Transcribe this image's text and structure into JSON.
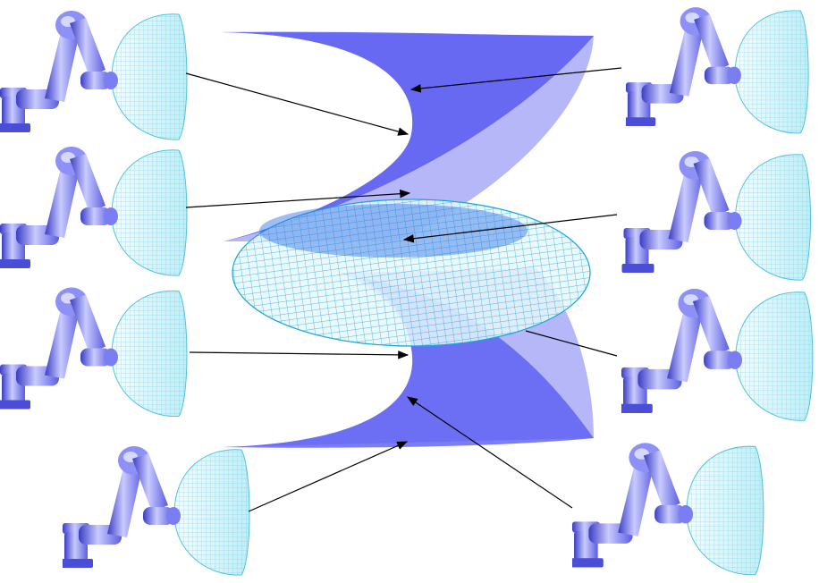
{
  "figure": {
    "background": "#ffffff",
    "colors": {
      "robot_body": "#6f72f0",
      "robot_highlight": "#c9cbff",
      "robot_shadow": "#3a3dc4",
      "workspace_dome_wire": "#5bd0e8",
      "workspace_dome_fill": "#e6f9fc",
      "surface_front": "#5a5cf2",
      "surface_back": "#a8aaf8",
      "disc_wire": "#1aa6d6",
      "arrow": "#000000"
    },
    "left_column_poses": [
      "pose-1",
      "pose-2",
      "pose-3",
      "pose-4"
    ],
    "right_column_poses": [
      "pose-5",
      "pose-6",
      "pose-7",
      "pose-8"
    ]
  }
}
